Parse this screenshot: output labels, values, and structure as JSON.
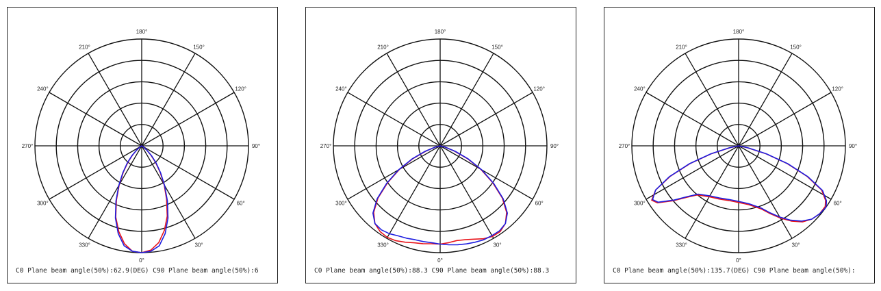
{
  "chart_data": [
    {
      "type": "polar",
      "angle_labels": [
        "0°",
        "30°",
        "60°",
        "90°",
        "120°",
        "150°",
        "180°",
        "210°",
        "240°",
        "270°",
        "300°",
        "330°"
      ],
      "rings": 5,
      "series": [
        {
          "color": "#e8141b",
          "points": [
            [
              0,
              1.0
            ],
            [
              5,
              0.98
            ],
            [
              10,
              0.92
            ],
            [
              15,
              0.82
            ],
            [
              20,
              0.7
            ],
            [
              25,
              0.55
            ],
            [
              30,
              0.42
            ],
            [
              35,
              0.3
            ],
            [
              40,
              0.2
            ],
            [
              45,
              0.12
            ],
            [
              50,
              0.06
            ],
            [
              55,
              0.02
            ],
            [
              60,
              0.0
            ],
            [
              300,
              0.0
            ],
            [
              305,
              0.02
            ],
            [
              310,
              0.06
            ],
            [
              315,
              0.12
            ],
            [
              320,
              0.2
            ],
            [
              325,
              0.3
            ],
            [
              330,
              0.42
            ],
            [
              335,
              0.56
            ],
            [
              340,
              0.71
            ],
            [
              345,
              0.83
            ],
            [
              350,
              0.93
            ],
            [
              355,
              0.99
            ]
          ]
        },
        {
          "color": "#1e1ee0",
          "points": [
            [
              0,
              1.0
            ],
            [
              5,
              0.99
            ],
            [
              10,
              0.95
            ],
            [
              15,
              0.85
            ],
            [
              20,
              0.72
            ],
            [
              25,
              0.57
            ],
            [
              30,
              0.43
            ],
            [
              35,
              0.31
            ],
            [
              40,
              0.21
            ],
            [
              45,
              0.13
            ],
            [
              50,
              0.06
            ],
            [
              55,
              0.02
            ],
            [
              60,
              0.0
            ],
            [
              300,
              0.0
            ],
            [
              305,
              0.02
            ],
            [
              310,
              0.06
            ],
            [
              315,
              0.13
            ],
            [
              320,
              0.21
            ],
            [
              325,
              0.31
            ],
            [
              330,
              0.43
            ],
            [
              335,
              0.57
            ],
            [
              340,
              0.72
            ],
            [
              345,
              0.85
            ],
            [
              350,
              0.95
            ],
            [
              355,
              0.99
            ]
          ]
        }
      ],
      "caption": "C0 Plane beam angle(50%):62.9(DEG)  C90 Plane beam angle(50%):6"
    },
    {
      "type": "polar",
      "angle_labels": [
        "0°",
        "30°",
        "60°",
        "90°",
        "120°",
        "150°",
        "180°",
        "210°",
        "240°",
        "270°",
        "300°",
        "330°"
      ],
      "rings": 5,
      "series": [
        {
          "color": "#e8141b",
          "points": [
            [
              0,
              0.92
            ],
            [
              5,
              0.91
            ],
            [
              10,
              0.9
            ],
            [
              15,
              0.91
            ],
            [
              20,
              0.93
            ],
            [
              25,
              0.96
            ],
            [
              30,
              0.98
            ],
            [
              35,
              0.98
            ],
            [
              40,
              0.95
            ],
            [
              45,
              0.88
            ],
            [
              50,
              0.76
            ],
            [
              55,
              0.6
            ],
            [
              60,
              0.44
            ],
            [
              65,
              0.28
            ],
            [
              70,
              0.14
            ],
            [
              75,
              0.05
            ],
            [
              80,
              0.0
            ],
            [
              280,
              0.0
            ],
            [
              285,
              0.05
            ],
            [
              290,
              0.14
            ],
            [
              295,
              0.28
            ],
            [
              300,
              0.44
            ],
            [
              305,
              0.6
            ],
            [
              310,
              0.76
            ],
            [
              315,
              0.88
            ],
            [
              320,
              0.95
            ],
            [
              325,
              0.98
            ],
            [
              330,
              0.99
            ],
            [
              335,
              0.98
            ],
            [
              340,
              0.96
            ],
            [
              345,
              0.94
            ],
            [
              350,
              0.93
            ],
            [
              355,
              0.92
            ]
          ]
        },
        {
          "color": "#1e1ee0",
          "points": [
            [
              0,
              0.92
            ],
            [
              5,
              0.93
            ],
            [
              10,
              0.94
            ],
            [
              15,
              0.95
            ],
            [
              20,
              0.96
            ],
            [
              25,
              0.97
            ],
            [
              30,
              0.97
            ],
            [
              35,
              0.97
            ],
            [
              40,
              0.95
            ],
            [
              45,
              0.89
            ],
            [
              50,
              0.77
            ],
            [
              55,
              0.61
            ],
            [
              60,
              0.45
            ],
            [
              65,
              0.29
            ],
            [
              70,
              0.15
            ],
            [
              75,
              0.05
            ],
            [
              80,
              0.0
            ],
            [
              280,
              0.0
            ],
            [
              285,
              0.05
            ],
            [
              290,
              0.15
            ],
            [
              295,
              0.29
            ],
            [
              300,
              0.45
            ],
            [
              305,
              0.61
            ],
            [
              310,
              0.77
            ],
            [
              315,
              0.89
            ],
            [
              320,
              0.95
            ],
            [
              325,
              0.96
            ],
            [
              330,
              0.95
            ],
            [
              335,
              0.93
            ],
            [
              340,
              0.92
            ],
            [
              345,
              0.91
            ],
            [
              350,
              0.91
            ],
            [
              355,
              0.91
            ]
          ]
        }
      ],
      "caption": "C0 Plane beam angle(50%):88.3  C90 Plane beam angle(50%):88.3"
    },
    {
      "type": "polar",
      "angle_labels": [
        "0°",
        "30°",
        "60°",
        "90°",
        "120°",
        "150°",
        "180°",
        "210°",
        "240°",
        "270°",
        "300°",
        "330°"
      ],
      "rings": 5,
      "series": [
        {
          "color": "#e8141b",
          "points": [
            [
              0,
              0.53
            ],
            [
              10,
              0.56
            ],
            [
              20,
              0.63
            ],
            [
              25,
              0.7
            ],
            [
              30,
              0.78
            ],
            [
              35,
              0.86
            ],
            [
              40,
              0.93
            ],
            [
              45,
              0.97
            ],
            [
              50,
              0.99
            ],
            [
              55,
              0.99
            ],
            [
              58,
              0.96
            ],
            [
              62,
              0.88
            ],
            [
              66,
              0.7
            ],
            [
              70,
              0.48
            ],
            [
              74,
              0.26
            ],
            [
              78,
              0.08
            ],
            [
              81,
              0.0
            ],
            [
              279,
              0.0
            ],
            [
              282,
              0.08
            ],
            [
              286,
              0.26
            ],
            [
              290,
              0.48
            ],
            [
              294,
              0.7
            ],
            [
              298,
              0.88
            ],
            [
              302,
              0.96
            ],
            [
              305,
              0.93
            ],
            [
              310,
              0.8
            ],
            [
              315,
              0.68
            ],
            [
              320,
              0.6
            ],
            [
              330,
              0.55
            ],
            [
              340,
              0.53
            ],
            [
              350,
              0.52
            ]
          ]
        },
        {
          "color": "#1e1ee0",
          "points": [
            [
              0,
              0.52
            ],
            [
              10,
              0.55
            ],
            [
              20,
              0.62
            ],
            [
              25,
              0.69
            ],
            [
              30,
              0.77
            ],
            [
              35,
              0.85
            ],
            [
              40,
              0.92
            ],
            [
              45,
              0.97
            ],
            [
              50,
              0.99
            ],
            [
              55,
              1.0
            ],
            [
              58,
              0.97
            ],
            [
              62,
              0.89
            ],
            [
              66,
              0.71
            ],
            [
              70,
              0.49
            ],
            [
              74,
              0.27
            ],
            [
              78,
              0.09
            ],
            [
              81,
              0.0
            ],
            [
              279,
              0.0
            ],
            [
              282,
              0.09
            ],
            [
              286,
              0.27
            ],
            [
              290,
              0.49
            ],
            [
              294,
              0.71
            ],
            [
              298,
              0.88
            ],
            [
              302,
              0.95
            ],
            [
              305,
              0.92
            ],
            [
              310,
              0.79
            ],
            [
              315,
              0.67
            ],
            [
              320,
              0.59
            ],
            [
              330,
              0.54
            ],
            [
              340,
              0.52
            ],
            [
              350,
              0.51
            ]
          ]
        }
      ],
      "caption": "C0 Plane beam angle(50%):135.7(DEG)  C90 Plane beam angle(50%):"
    }
  ]
}
